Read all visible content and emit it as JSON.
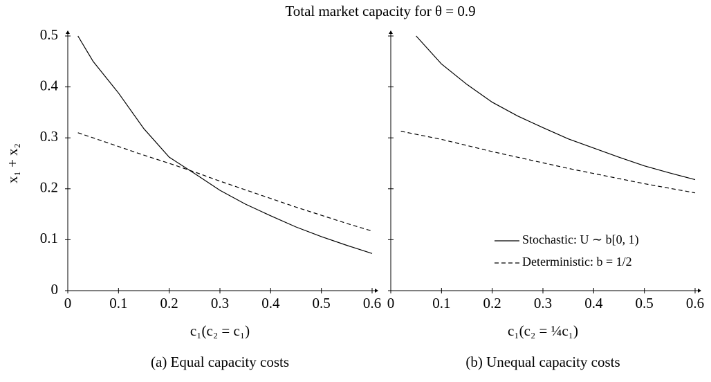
{
  "title": "Total market capacity for θ = 0.9",
  "chart_data": [
    {
      "type": "line",
      "caption": "(a) Equal capacity costs",
      "xlabel": "c₁(c₂ = c₁)",
      "ylabel": "x₁ + x₂",
      "x": [
        0.02,
        0.05,
        0.1,
        0.15,
        0.2,
        0.25,
        0.3,
        0.35,
        0.4,
        0.45,
        0.5,
        0.55,
        0.6
      ],
      "series": [
        {
          "name": "Stochastic: U ∼ b[0, 1)",
          "color": "#000000",
          "dashed": false,
          "values": [
            0.5,
            0.45,
            0.388,
            0.318,
            0.262,
            0.23,
            0.197,
            0.17,
            0.147,
            0.125,
            0.106,
            0.089,
            0.073
          ]
        },
        {
          "name": "Deterministic: b = 1/2",
          "color": "#000000",
          "dashed": true,
          "values": [
            0.31,
            0.3,
            0.283,
            0.266,
            0.25,
            0.233,
            0.215,
            0.198,
            0.181,
            0.164,
            0.148,
            0.132,
            0.117
          ]
        }
      ],
      "xlim": [
        0,
        0.6
      ],
      "ylim": [
        0,
        0.5
      ],
      "xticks": [
        0,
        0.1,
        0.2,
        0.3,
        0.4,
        0.5,
        0.6
      ],
      "yticks": [
        0,
        0.1,
        0.2,
        0.3,
        0.4,
        0.5
      ],
      "ytick_labels": true,
      "legend": false
    },
    {
      "type": "line",
      "caption": "(b) Unequal capacity costs",
      "xlabel": "c₁(c₂ = ¼c₁)",
      "x": [
        0.02,
        0.05,
        0.1,
        0.15,
        0.2,
        0.25,
        0.3,
        0.35,
        0.4,
        0.45,
        0.5,
        0.55,
        0.6
      ],
      "series": [
        {
          "name": "Stochastic: U ∼ b[0, 1)",
          "color": "#000000",
          "dashed": false,
          "values": [
            null,
            0.5,
            0.445,
            0.405,
            0.37,
            0.343,
            0.32,
            0.298,
            0.28,
            0.262,
            0.245,
            0.231,
            0.218
          ]
        },
        {
          "name": "Deterministic: b = 1/2",
          "color": "#000000",
          "dashed": true,
          "values": [
            0.313,
            0.307,
            0.297,
            0.285,
            0.273,
            0.262,
            0.251,
            0.24,
            0.23,
            0.22,
            0.21,
            0.201,
            0.192
          ]
        }
      ],
      "xlim": [
        0,
        0.6
      ],
      "ylim": [
        0,
        0.5
      ],
      "xticks": [
        0,
        0.1,
        0.2,
        0.3,
        0.4,
        0.5,
        0.6
      ],
      "yticks": [
        0,
        0.1,
        0.2,
        0.3,
        0.4,
        0.5
      ],
      "ytick_labels": false,
      "legend": "lower right"
    }
  ]
}
